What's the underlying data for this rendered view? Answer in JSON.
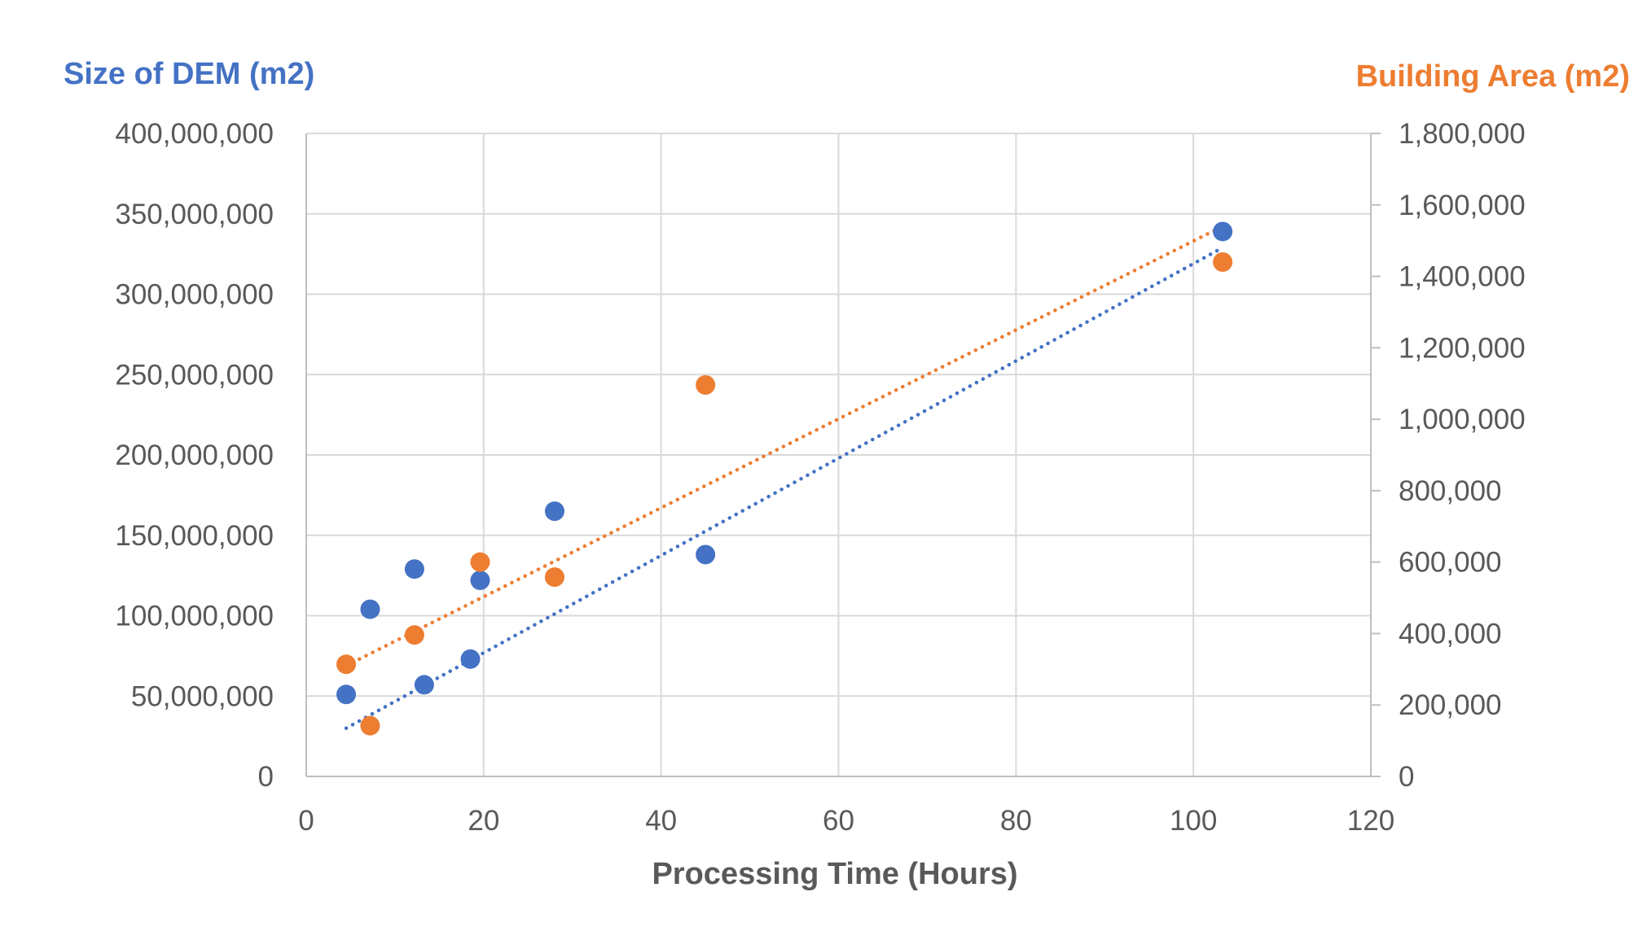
{
  "chart_data": {
    "type": "scatter",
    "title": "",
    "xlabel": "Processing Time (Hours)",
    "ylabel": "Size of DEM (m2)",
    "y2label": "Building Area (m2)",
    "xlim": [
      0,
      120
    ],
    "ylim": [
      0,
      400000000
    ],
    "y2lim": [
      0,
      1800000
    ],
    "x_ticks": [
      "0",
      "20",
      "40",
      "60",
      "80",
      "100",
      "120"
    ],
    "y_ticks": [
      "0",
      "50,000,000",
      "100,000,000",
      "150,000,000",
      "200,000,000",
      "250,000,000",
      "300,000,000",
      "350,000,000",
      "400,000,000"
    ],
    "y2_ticks": [
      "0",
      "200,000",
      "400,000",
      "600,000",
      "800,000",
      "1,000,000",
      "1,200,000",
      "1,400,000",
      "1,600,000",
      "1,800,000"
    ],
    "grid": true,
    "legend": "none",
    "series": [
      {
        "color": "#4472C4",
        "axis": "left",
        "points": [
          {
            "x": 4.5,
            "y": 51000000
          },
          {
            "x": 7.2,
            "y": 104000000
          },
          {
            "x": 12.2,
            "y": 129000000
          },
          {
            "x": 13.3,
            "y": 57000000
          },
          {
            "x": 18.5,
            "y": 73000000
          },
          {
            "x": 19.6,
            "y": 122000000
          },
          {
            "x": 28.0,
            "y": 165000000
          },
          {
            "x": 45.0,
            "y": 138000000
          },
          {
            "x": 103.3,
            "y": 339000000
          }
        ],
        "trendline": {
          "style": "dotted",
          "x": [
            4.5,
            103.3
          ],
          "y": [
            30000000,
            329000000
          ]
        }
      },
      {
        "color": "#ED7D31",
        "axis": "right",
        "points": [
          {
            "x": 4.5,
            "y": 314000
          },
          {
            "x": 7.2,
            "y": 142000
          },
          {
            "x": 12.2,
            "y": 396000
          },
          {
            "x": 19.6,
            "y": 600000
          },
          {
            "x": 28.0,
            "y": 558000
          },
          {
            "x": 45.0,
            "y": 1096000
          },
          {
            "x": 103.3,
            "y": 1440000
          }
        ],
        "trendline": {
          "style": "dotted",
          "x": [
            4.5,
            103.3
          ],
          "y": [
            310000,
            1540000
          ]
        }
      }
    ]
  }
}
